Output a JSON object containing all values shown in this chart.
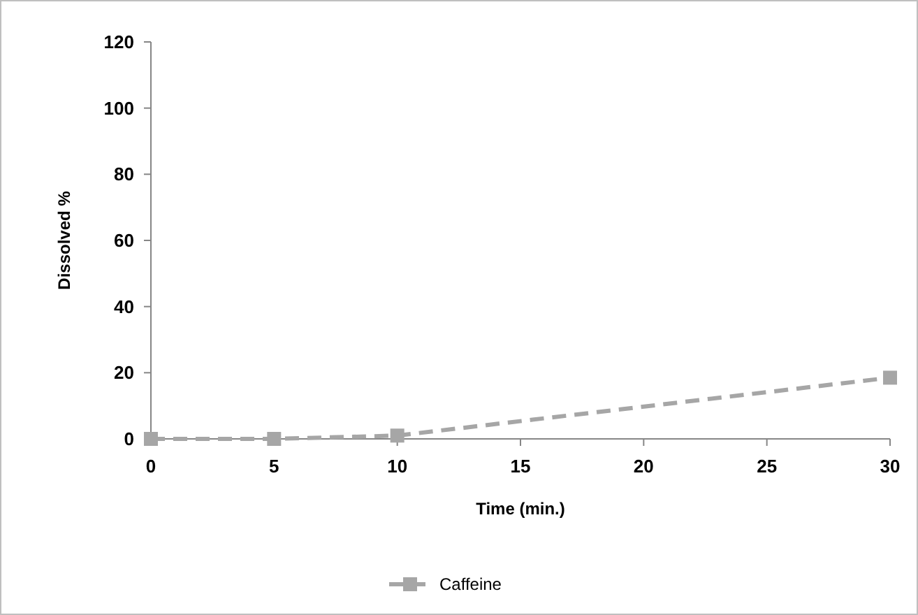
{
  "chart_data": {
    "type": "line",
    "xlabel": "Time (min.)",
    "ylabel": "Dissolved %",
    "x": [
      0,
      5,
      10,
      30
    ],
    "series": [
      {
        "name": "Caffeine",
        "color": "#a6a6a6",
        "values": [
          0,
          0,
          1,
          18.5
        ]
      }
    ],
    "xlim": [
      0,
      30
    ],
    "xticks": [
      0,
      5,
      10,
      15,
      20,
      25,
      30
    ],
    "ylim": [
      0,
      120
    ],
    "yticks": [
      0,
      20,
      40,
      60,
      80,
      100,
      120
    ],
    "marker": "square",
    "line_style": "dashed",
    "legend": "bottom",
    "grid": false
  }
}
